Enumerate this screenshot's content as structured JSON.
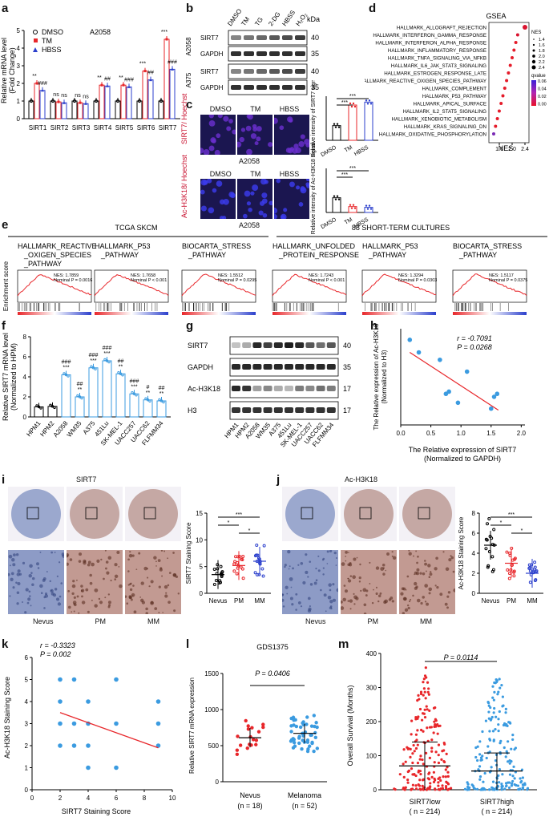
{
  "panels": {
    "a": {
      "label": "a",
      "ylabel": "Relative mRNA level",
      "ylabel2": "(Fold Change)",
      "cell": "A2058",
      "legend": [
        "DMSO",
        "TM",
        "HBSS"
      ],
      "yticks": [
        "0",
        "1",
        "2",
        "3",
        "4",
        "5"
      ],
      "categories": [
        "SIRT1",
        "SIRT2",
        "SIRT3",
        "SIRT4",
        "SIRT5",
        "SIRT6",
        "SIRT7"
      ],
      "marks": [
        [
          "**",
          "###"
        ],
        [
          "ns",
          "ns"
        ],
        [
          "ns",
          "ns"
        ],
        [
          "**",
          "##"
        ],
        [
          "**",
          "###"
        ],
        [
          "***",
          "##"
        ],
        [
          "***",
          "###"
        ]
      ]
    },
    "b": {
      "label": "b",
      "lanes": [
        "DMSO",
        "TM",
        "TG",
        "2-DG",
        "HBSS",
        "H₂O₂"
      ],
      "kda": "kDa",
      "groups": [
        {
          "name": "A2058",
          "rows": [
            {
              "name": "SIRT7",
              "kda": "40"
            },
            {
              "name": "GAPDH",
              "kda": "35"
            }
          ]
        },
        {
          "name": "A375",
          "rows": [
            {
              "name": "SIRT7",
              "kda": "40"
            },
            {
              "name": "GAPDH",
              "kda": "35"
            }
          ]
        }
      ]
    },
    "c": {
      "label": "c",
      "conds": [
        "DMSO",
        "TM",
        "HBSS"
      ],
      "cell": "A2058",
      "row1": "SIRT7/ Hoechst",
      "row2": "Ac-H3K18/ Hoechst",
      "q1": "Relative intensity of SIRT7 signal",
      "q2": "Relative intensity of Ac-H3K18 signal",
      "sig": [
        "***",
        "***"
      ]
    },
    "d": {
      "label": "d",
      "title": "GSEA",
      "xlabel": "NES",
      "xticks": [
        "1.6",
        "2.0",
        "2.4"
      ],
      "nes_legend_title": "NES",
      "nes_sizes": [
        "1.4",
        "1.6",
        "1.8",
        "2.0",
        "2.2",
        "2.4"
      ],
      "q_title": "qvalue",
      "q_ticks": [
        "0.06",
        "0.04",
        "0.02",
        "0.00"
      ],
      "terms": [
        "HALLMARK_ALLOGRAFT_REJECTION",
        "HALLMARK_INTERFERON_GAMMA_RESPONSE",
        "HALLMARK_INTERFERON_ALPHA_RESPONSE",
        "HALLMARK_INFLAMMATORY_RESPONSE",
        "HALLMARK_TNFA_SIGNALING_VIA_NFKB",
        "HALLMARK_IL6_JAK_STAT3_SIGNALING",
        "HALLMARK_ESTROGEN_RESPONSE_LATE",
        "HALLMARK_REACTIVE_OXIGEN_SPECIES_PATHWAY",
        "HALLMARK_COMPLEMENT",
        "HALLMARK_P53_PATHWAY",
        "HALLMARK_APICAL_SURFACE",
        "HALLMARK_IL2_STAT5_SIGNALING",
        "HALLMARK_XENOBIOTIC_METABOLISM",
        "HALLMARK_KRAS_SIGNALING_DN",
        "HALLMARK_OXIDATIVE_PHOSPHORYLATION"
      ]
    },
    "e": {
      "label": "e",
      "group1": "TCGA SKCM",
      "group2": "88 SHORT-TERM CULTURES",
      "ylabel": "Enrichment score",
      "plots": [
        {
          "t1": "HALLMARK_REACTIVE",
          "t2": "_OXIGEN_SPECIES",
          "t3": "_PATHWAY",
          "nes": "NES: 1.7859",
          "p": "Nominal P = 0.0016"
        },
        {
          "t1": "HALLMARK_P53",
          "t2": "_PATHWAY",
          "t3": "",
          "nes": "NES: 1.7658",
          "p": "Nominal P < 0.001"
        },
        {
          "t1": "BIOCARTA_STRESS",
          "t2": "_PATHWAY",
          "t3": "",
          "nes": "NES: 1.5512",
          "p": "Nominal P = 0.0295"
        },
        {
          "t1": "HALLMARK_UNFOLDED",
          "t2": "_PROTEIN_RESPONSE",
          "t3": "",
          "nes": "NES: 1.7243",
          "p": "Nominal P < 0.001"
        },
        {
          "t1": "HALLMARK_P53",
          "t2": "_PATHWAY",
          "t3": "",
          "nes": "NES: 1.3294",
          "p": "Nominal P = 0.0303"
        },
        {
          "t1": "BIOCARTA_STRESS",
          "t2": "_PATHWAY",
          "t3": "",
          "nes": "NES: 1.5117",
          "p": "Nominal P = 0.0375"
        }
      ]
    },
    "f": {
      "label": "f",
      "ylabel": "Relative SIRT7 mRNA level",
      "ylabel2": "(Normalized to HPM)",
      "yticks": [
        "0",
        "2",
        "4",
        "6",
        "8"
      ],
      "categories": [
        "HPM1",
        "HPM2",
        "A2058",
        "WM35",
        "A375",
        "451Lu",
        "SK-MEL-1",
        "UACC257",
        "UACC62",
        "FLFMM34"
      ],
      "marks": [
        [
          "",
          ""
        ],
        [
          "",
          ""
        ],
        [
          "###",
          "***"
        ],
        [
          "##",
          "**"
        ],
        [
          "###",
          "***"
        ],
        [
          "###",
          "***"
        ],
        [
          "##",
          "**"
        ],
        [
          "###",
          "***"
        ],
        [
          "#",
          "**"
        ],
        [
          "##",
          "**"
        ]
      ]
    },
    "g": {
      "label": "g",
      "rows": [
        {
          "name": "SIRT7",
          "kda": "40"
        },
        {
          "name": "GAPDH",
          "kda": "35"
        },
        {
          "name": "Ac-H3K18",
          "kda": "17"
        },
        {
          "name": "H3",
          "kda": "17"
        }
      ],
      "lanes": [
        "HPM1",
        "HPM2",
        "A2058",
        "WM35",
        "A375",
        "451Lu",
        "SK-MEL-1",
        "UACC257",
        "UACC62",
        "FLFMM34"
      ]
    },
    "h": {
      "label": "h",
      "r": "r = -0.7091",
      "p": "P = 0.0268",
      "ylabel": "The Relative expression of Ac-H3K18",
      "ylabel2": "(Normalized to H3)",
      "xlabel": "The Relative expression of SIRT7",
      "xlabel2": "(Normalized to GAPDH)",
      "xticks": [
        "0.0",
        "0.5",
        "1.0",
        "1.5",
        "2.0"
      ]
    },
    "i": {
      "label": "i",
      "title": "SIRT7",
      "groups": [
        "Nevus",
        "PM",
        "MM"
      ],
      "ylabel": "SIRT7 Staining Score",
      "yticks": [
        "0",
        "5",
        "10",
        "15"
      ],
      "sig": [
        "***",
        "*",
        "*"
      ]
    },
    "j": {
      "label": "j",
      "title": "Ac-H3K18",
      "groups": [
        "Nevus",
        "PM",
        "MM"
      ],
      "ylabel": "Ac-H3K18 Staining Score",
      "yticks": [
        "0",
        "2",
        "4",
        "6",
        "8"
      ],
      "sig": [
        "***",
        "*",
        "*"
      ]
    },
    "k": {
      "label": "k",
      "r": "r = -0.3323",
      "p": "P = 0.002",
      "ylabel": "Ac-H3K18 Staining Score",
      "xlabel": "SIRT7 Staining Score",
      "xticks": [
        "0",
        "2",
        "4",
        "6",
        "8",
        "10"
      ],
      "yticks": [
        "0",
        "1",
        "2",
        "3",
        "4",
        "5",
        "6"
      ]
    },
    "l": {
      "label": "l",
      "title": "GDS1375",
      "p": "P = 0.0406",
      "ylabel": "Relative SIRT7 mRNA  expression",
      "yticks": [
        "0",
        "500",
        "1000",
        "1500"
      ],
      "groups": [
        "Nevus",
        "Melanoma"
      ],
      "n": [
        "(n = 18)",
        "(n = 52)"
      ]
    },
    "m": {
      "label": "m",
      "p": "P = 0.0114",
      "ylabel": "Overall Survival (Months)",
      "yticks": [
        "0",
        "100",
        "200",
        "300",
        "400"
      ],
      "groups": [
        "SIRT7low",
        "SIRT7high"
      ],
      "n": [
        "( n = 214)",
        "( n = 214)"
      ]
    }
  },
  "chart_data": [
    {
      "type": "bar",
      "id": "a",
      "categories": [
        "SIRT1",
        "SIRT2",
        "SIRT3",
        "SIRT4",
        "SIRT5",
        "SIRT6",
        "SIRT7"
      ],
      "ylabel": "Relative mRNA level (Fold Change)",
      "ylim": [
        0,
        5
      ],
      "series": [
        {
          "name": "DMSO",
          "values": [
            1,
            1,
            1,
            1,
            1,
            1,
            1
          ]
        },
        {
          "name": "TM",
          "values": [
            2.0,
            0.95,
            0.9,
            1.9,
            1.9,
            2.7,
            4.5
          ]
        },
        {
          "name": "HBSS",
          "values": [
            1.6,
            0.9,
            0.85,
            1.85,
            1.8,
            2.2,
            2.8
          ]
        }
      ]
    },
    {
      "type": "bar",
      "id": "f",
      "categories": [
        "HPM1",
        "HPM2",
        "A2058",
        "WM35",
        "A375",
        "451Lu",
        "SK-MEL-1",
        "UACC257",
        "UACC62",
        "FLFMM34"
      ],
      "ylabel": "Relative SIRT7 mRNA level (Normalized to HPM)",
      "ylim": [
        0,
        8
      ],
      "values": [
        1,
        1.05,
        4.2,
        2.0,
        4.9,
        5.6,
        4.3,
        2.3,
        1.7,
        1.6
      ]
    },
    {
      "type": "scatter",
      "id": "h",
      "xlim": [
        0,
        2
      ],
      "ylim": [
        0,
        1.3
      ],
      "x": [
        0.15,
        0.3,
        0.65,
        0.75,
        0.8,
        0.95,
        1.1,
        1.5,
        1.55,
        1.6
      ],
      "y": [
        1.15,
        0.98,
        0.88,
        0.42,
        0.45,
        0.3,
        0.72,
        0.22,
        0.38,
        0.42
      ]
    },
    {
      "type": "scatter",
      "id": "k",
      "xlim": [
        0,
        10
      ],
      "ylim": [
        0,
        6
      ],
      "x": [
        2,
        2,
        2,
        2,
        3,
        3,
        3,
        4,
        4,
        4,
        4,
        6,
        6,
        6,
        9,
        9,
        9
      ],
      "y": [
        2,
        3,
        4,
        5,
        2,
        3,
        5,
        1,
        2,
        3,
        4,
        1,
        3,
        5,
        2,
        3,
        4
      ]
    },
    {
      "type": "scatter",
      "id": "l",
      "categories": [
        "Nevus",
        "Melanoma"
      ],
      "ylim": [
        0,
        1500
      ],
      "means": [
        610,
        670
      ]
    },
    {
      "type": "scatter",
      "id": "m",
      "categories": [
        "SIRT7low",
        "SIRT7high"
      ],
      "ylim": [
        0,
        400
      ],
      "means": [
        70,
        55
      ]
    },
    {
      "type": "scatter",
      "id": "i",
      "categories": [
        "Nevus",
        "PM",
        "MM"
      ],
      "ylim": [
        0,
        15
      ],
      "means": [
        3.5,
        5.2,
        6.0
      ]
    },
    {
      "type": "scatter",
      "id": "j",
      "categories": [
        "Nevus",
        "PM",
        "MM"
      ],
      "ylim": [
        0,
        8
      ],
      "means": [
        4.8,
        3.0,
        2.0
      ]
    }
  ]
}
